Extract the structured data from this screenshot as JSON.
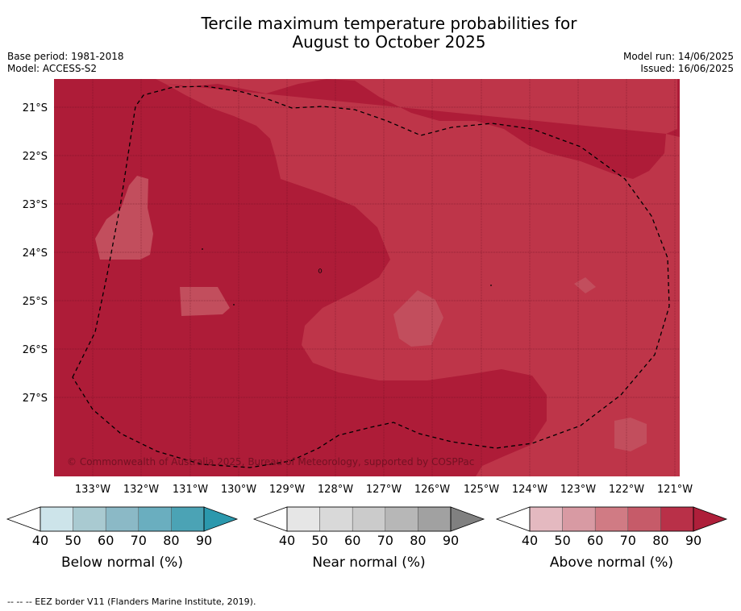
{
  "title_line1": "Tercile maximum temperature probabilities for",
  "title_line2": "August to October 2025",
  "base_period": "Base period: 1981-2018",
  "model": "Model: ACCESS-S2",
  "model_run": "Model run: 14/06/2025",
  "issued": "Issued: 16/06/2025",
  "copyright": "© Commonwealth of Australia 2025, Bureau of Meteorology, supported by COSPPac",
  "lat_labels": [
    "21°S",
    "22°S",
    "23°S",
    "24°S",
    "25°S",
    "26°S",
    "27°S"
  ],
  "lon_labels": [
    "133°W",
    "132°W",
    "131°W",
    "130°W",
    "129°W",
    "128°W",
    "127°W",
    "126°W",
    "125°W",
    "124°W",
    "123°W",
    "122°W",
    "121°W"
  ],
  "colorbars": [
    {
      "label": "Below normal (%)",
      "ticks": [
        "40",
        "50",
        "60",
        "70",
        "80",
        "90"
      ],
      "colors": [
        "#ffffff",
        "#cde4ea",
        "#a9cad1",
        "#8bb9c6",
        "#6aaebf",
        "#4ba3b5",
        "#2b98ad"
      ]
    },
    {
      "label": "Near normal (%)",
      "ticks": [
        "40",
        "50",
        "60",
        "70",
        "80",
        "90"
      ],
      "colors": [
        "#ffffff",
        "#e6e6e6",
        "#d9d9d9",
        "#cbcbcb",
        "#b7b7b7",
        "#a1a1a1",
        "#808080"
      ]
    },
    {
      "label": "Above normal (%)",
      "ticks": [
        "40",
        "50",
        "60",
        "70",
        "80",
        "90"
      ],
      "colors": [
        "#ffffff",
        "#e4b9c0",
        "#d89aa3",
        "#d07b84",
        "#c65b69",
        "#b93048",
        "#ae1f3a"
      ]
    }
  ],
  "map_colors": {
    "dark": "#ae1c38",
    "light": "#be3549",
    "lighter": "#c24e5d"
  },
  "footnote": "--  --  -- EEZ border V11 (Flanders Marine Institute, 2019)."
}
